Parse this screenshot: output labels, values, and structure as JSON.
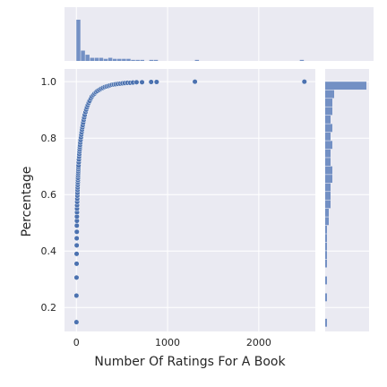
{
  "chart_data": {
    "type": "scatter",
    "title": "",
    "xlabel": "Number Of Ratings For A Book",
    "ylabel": "Percentage",
    "xlim": [
      -130,
      2620
    ],
    "ylim": [
      0.115,
      1.045
    ],
    "xticks": [
      0,
      1000,
      2000
    ],
    "xtick_labels": [
      "0",
      "1000",
      "2000"
    ],
    "yticks": [
      0.2,
      0.4,
      0.6,
      0.8,
      1.0
    ],
    "ytick_labels": [
      "0.2",
      "0.4",
      "0.6",
      "0.8",
      "1.0"
    ],
    "grid": true,
    "marginals": {
      "top": "histogram of x",
      "right": "histogram of y"
    },
    "colors": {
      "background": "#eaeaf2",
      "grid": "#ffffff",
      "marker": "#4c72b0",
      "marker_edge": "#ffffff",
      "hist": "#7390c4"
    },
    "series": [
      {
        "x": [
          1,
          1,
          2,
          3,
          3,
          4,
          4,
          5,
          5,
          6,
          6,
          7,
          7,
          8,
          9,
          10,
          11,
          12,
          13,
          14,
          15,
          16,
          17,
          18,
          19,
          20,
          21,
          22,
          23,
          24,
          26,
          28,
          30,
          32,
          34,
          36,
          38,
          40,
          43,
          46,
          50,
          54,
          58,
          62,
          66,
          70,
          75,
          80,
          86,
          92,
          100,
          108,
          116,
          125,
          135,
          145,
          158,
          170,
          185,
          200,
          215,
          230,
          250,
          270,
          290,
          310,
          330,
          350,
          370,
          390,
          410,
          430,
          455,
          480,
          505,
          530,
          560,
          590,
          620,
          660,
          720,
          820,
          880,
          1300,
          2500
        ],
        "y": [
          0.148,
          0.242,
          0.306,
          0.355,
          0.39,
          0.42,
          0.445,
          0.468,
          0.49,
          0.507,
          0.522,
          0.537,
          0.55,
          0.562,
          0.574,
          0.585,
          0.596,
          0.606,
          0.616,
          0.625,
          0.634,
          0.643,
          0.651,
          0.659,
          0.667,
          0.675,
          0.682,
          0.689,
          0.696,
          0.703,
          0.714,
          0.724,
          0.734,
          0.743,
          0.752,
          0.76,
          0.768,
          0.775,
          0.784,
          0.793,
          0.803,
          0.812,
          0.821,
          0.83,
          0.838,
          0.846,
          0.855,
          0.864,
          0.873,
          0.882,
          0.892,
          0.901,
          0.909,
          0.917,
          0.925,
          0.932,
          0.94,
          0.947,
          0.953,
          0.958,
          0.963,
          0.967,
          0.971,
          0.975,
          0.978,
          0.981,
          0.983,
          0.985,
          0.987,
          0.989,
          0.99,
          0.991,
          0.992,
          0.993,
          0.994,
          0.995,
          0.996,
          0.996,
          0.997,
          0.998,
          0.998,
          0.999,
          0.999,
          1.0,
          1.0
        ]
      }
    ]
  }
}
